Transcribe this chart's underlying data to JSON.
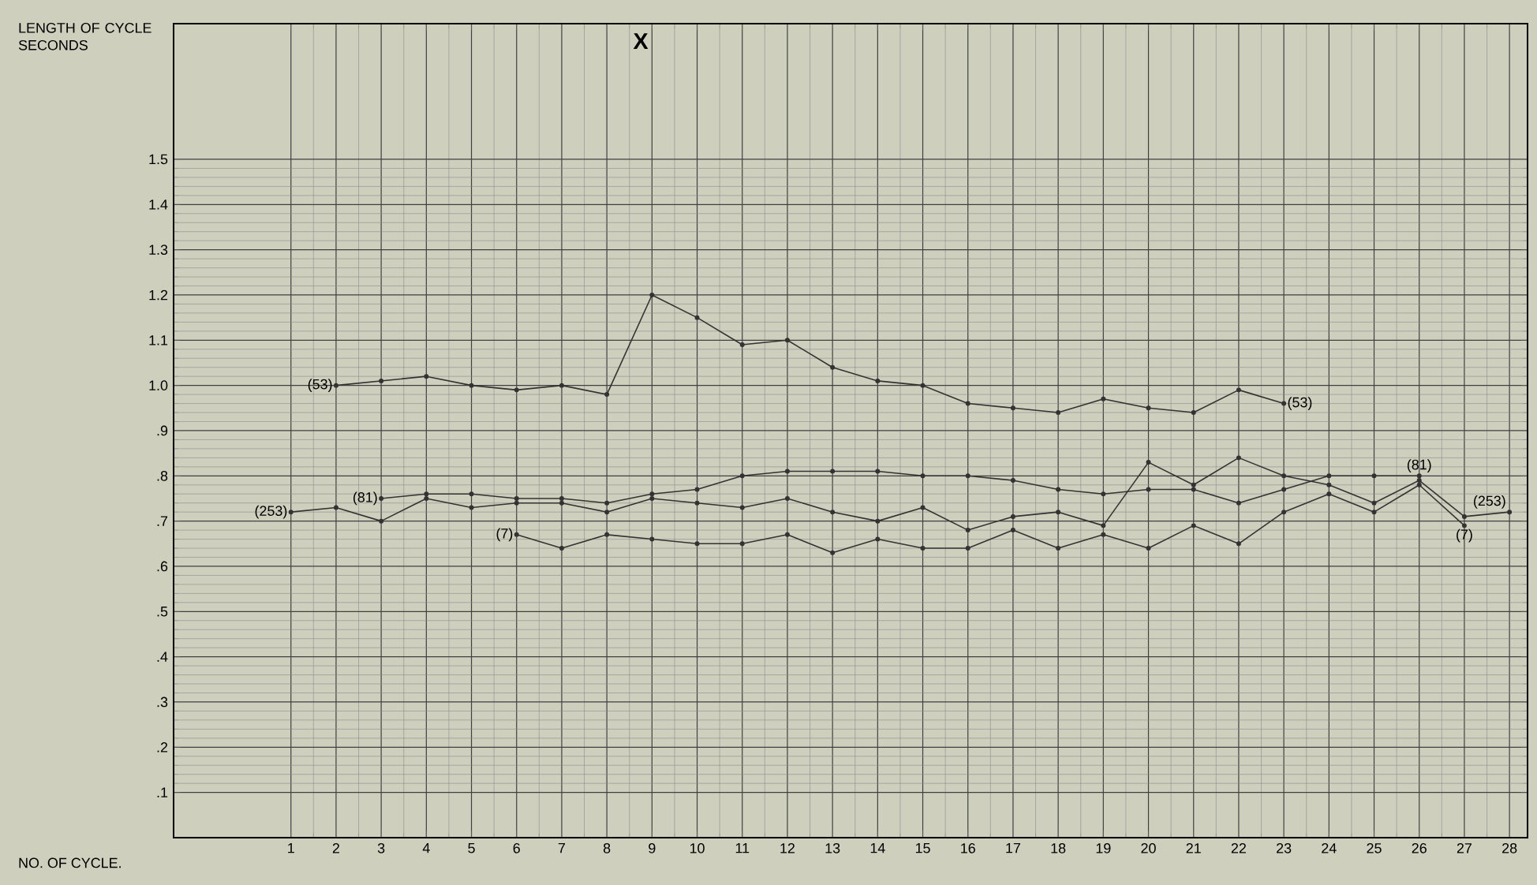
{
  "chart_data": {
    "type": "line",
    "ylabel": "LENGTH OF CYCLE SECONDS",
    "xlabel": "NO. OF CYCLE.",
    "annotations": [
      "X"
    ],
    "xlim": [
      -1.6,
      28.4
    ],
    "ylim": [
      0,
      1.8
    ],
    "xticks": [
      1,
      2,
      3,
      4,
      5,
      6,
      7,
      8,
      9,
      10,
      11,
      12,
      13,
      14,
      15,
      16,
      17,
      18,
      19,
      20,
      21,
      22,
      23,
      24,
      25,
      26,
      27,
      28
    ],
    "yticks": [
      {
        "value": 0.1,
        "label": ".1"
      },
      {
        "value": 0.2,
        "label": ".2"
      },
      {
        "value": 0.3,
        "label": ".3"
      },
      {
        "value": 0.4,
        "label": ".4"
      },
      {
        "value": 0.5,
        "label": ".5"
      },
      {
        "value": 0.6,
        "label": ".6"
      },
      {
        "value": 0.7,
        "label": ".7"
      },
      {
        "value": 0.8,
        "label": ".8"
      },
      {
        "value": 0.9,
        "label": ".9"
      },
      {
        "value": 1.0,
        "label": "1.0"
      },
      {
        "value": 1.1,
        "label": "1.1"
      },
      {
        "value": 1.2,
        "label": "1.2"
      },
      {
        "value": 1.3,
        "label": "1.3"
      },
      {
        "value": 1.4,
        "label": "1.4"
      },
      {
        "value": 1.5,
        "label": "1.5"
      }
    ],
    "grid": true,
    "legend": false,
    "marker": "circle",
    "line_style": "solid",
    "series": [
      {
        "name": "(53)",
        "color": "#333333",
        "x": [
          2,
          3,
          4,
          5,
          6,
          7,
          8,
          9,
          10,
          11,
          12,
          13,
          14,
          15,
          16,
          17,
          18,
          19,
          20,
          21,
          22,
          23
        ],
        "values": [
          1.0,
          1.01,
          1.02,
          1.0,
          0.99,
          1.0,
          0.98,
          1.2,
          1.15,
          1.09,
          1.1,
          1.04,
          1.01,
          1.0,
          0.96,
          0.95,
          0.94,
          0.97,
          0.95,
          0.94,
          0.99,
          0.96
        ]
      },
      {
        "name": "(81)",
        "color": "#333333",
        "x": [
          3,
          4,
          5,
          6,
          7,
          8,
          9,
          10,
          11,
          12,
          13,
          14,
          15,
          16,
          17,
          18,
          19,
          20,
          21,
          22,
          23,
          24,
          25,
          26
        ],
        "values": [
          0.75,
          0.76,
          0.76,
          0.75,
          0.75,
          0.74,
          0.76,
          0.77,
          0.8,
          0.81,
          0.81,
          0.81,
          0.8,
          0.8,
          0.79,
          0.77,
          0.76,
          0.77,
          0.77,
          0.74,
          0.77,
          0.8,
          0.8,
          0.8
        ]
      },
      {
        "name": "(253)",
        "color": "#333333",
        "x": [
          1,
          2,
          3,
          4,
          5,
          6,
          7,
          8,
          9,
          10,
          11,
          12,
          13,
          14,
          15,
          16,
          17,
          18,
          19,
          20,
          21,
          22,
          23,
          24,
          25,
          26,
          27,
          28
        ],
        "values": [
          0.72,
          0.73,
          0.7,
          0.75,
          0.73,
          0.74,
          0.74,
          0.72,
          0.75,
          0.74,
          0.73,
          0.75,
          0.72,
          0.7,
          0.73,
          0.68,
          0.71,
          0.72,
          0.69,
          0.83,
          0.78,
          0.84,
          0.8,
          0.78,
          0.74,
          0.79,
          0.71,
          0.72
        ]
      },
      {
        "name": "(7)",
        "color": "#333333",
        "x": [
          6,
          7,
          8,
          9,
          10,
          11,
          12,
          13,
          14,
          15,
          16,
          17,
          18,
          19,
          20,
          21,
          22,
          23,
          24,
          25,
          26,
          27
        ],
        "values": [
          0.67,
          0.64,
          0.67,
          0.66,
          0.65,
          0.65,
          0.67,
          0.63,
          0.66,
          0.64,
          0.64,
          0.68,
          0.64,
          0.67,
          0.64,
          0.69,
          0.65,
          0.72,
          0.76,
          0.72,
          0.78,
          0.69
        ]
      }
    ]
  }
}
